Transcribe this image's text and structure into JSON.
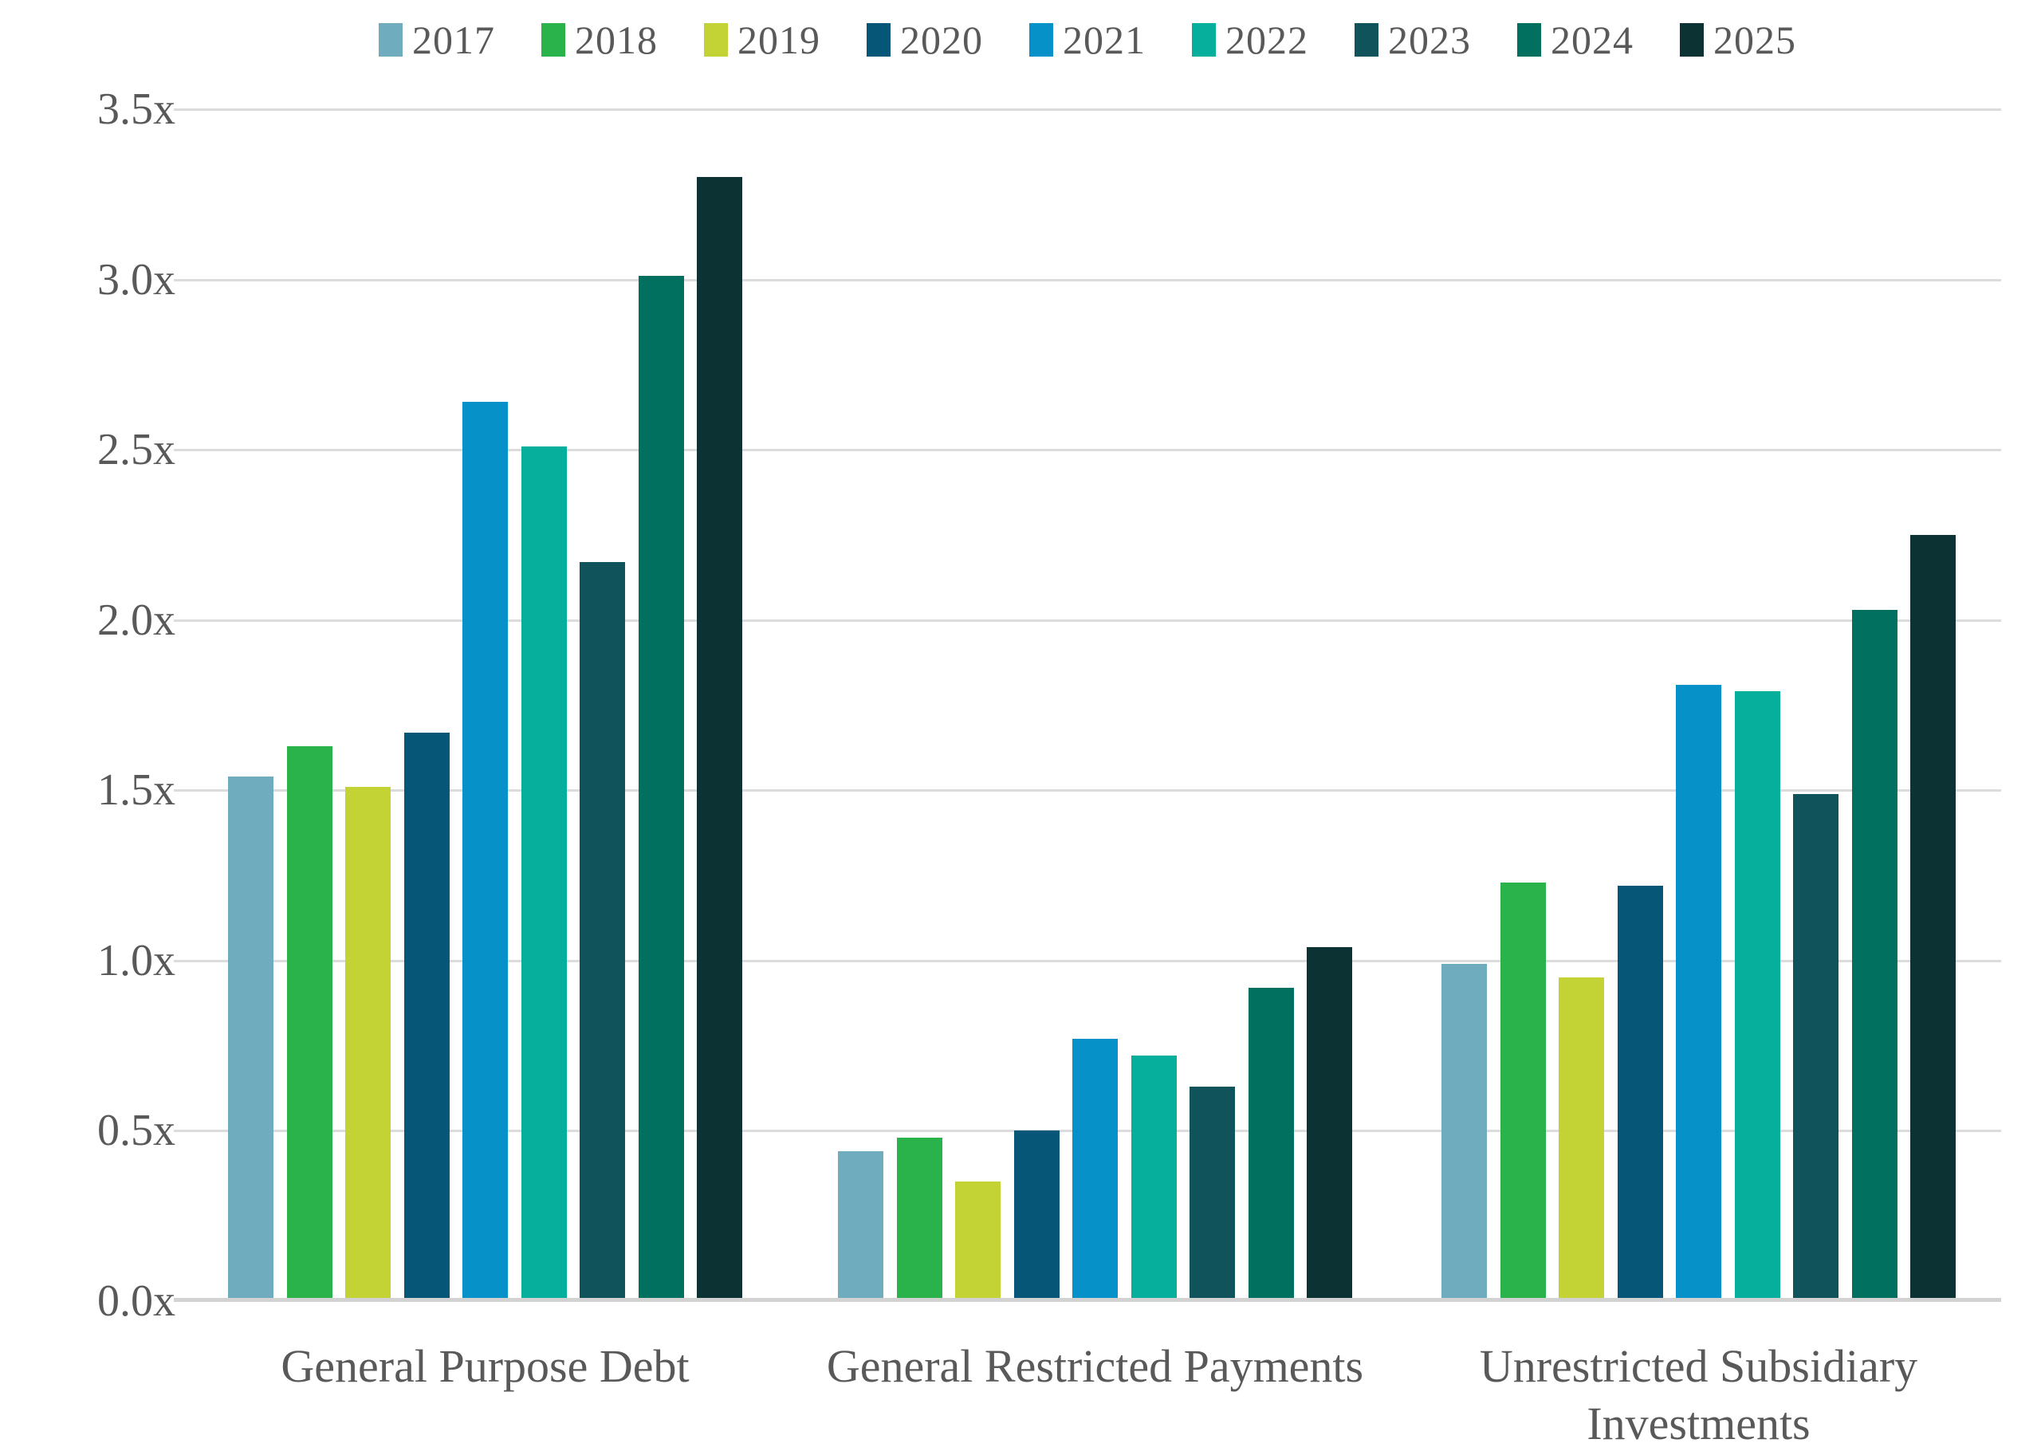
{
  "chart_data": {
    "type": "bar",
    "title": "",
    "xlabel": "",
    "ylabel": "",
    "categories": [
      "General Purpose Debt",
      "General Restricted Payments",
      "Unrestricted Subsidiary Investments"
    ],
    "series": [
      {
        "name": "2017",
        "color": "#6FACBE",
        "values": [
          1.54,
          0.44,
          0.99
        ]
      },
      {
        "name": "2018",
        "color": "#2BB34B",
        "values": [
          1.63,
          0.48,
          1.23
        ]
      },
      {
        "name": "2019",
        "color": "#C3D234",
        "values": [
          1.51,
          0.35,
          0.95
        ]
      },
      {
        "name": "2020",
        "color": "#055677",
        "values": [
          1.67,
          0.5,
          1.22
        ]
      },
      {
        "name": "2021",
        "color": "#0692C8",
        "values": [
          2.64,
          0.77,
          1.81
        ]
      },
      {
        "name": "2022",
        "color": "#05AF9C",
        "values": [
          2.51,
          0.72,
          1.79
        ]
      },
      {
        "name": "2023",
        "color": "#11535B",
        "values": [
          2.17,
          0.63,
          1.49
        ]
      },
      {
        "name": "2024",
        "color": "#02705F",
        "values": [
          3.01,
          0.92,
          2.03
        ]
      },
      {
        "name": "2025",
        "color": "#0C3234",
        "values": [
          3.3,
          1.04,
          2.25
        ]
      }
    ],
    "y_ticks": [
      "3.5x",
      "3.0x",
      "2.5x",
      "2.0x",
      "1.5x",
      "1.0x",
      "0.5x",
      "0.0x"
    ],
    "ylim": [
      0,
      3.5
    ],
    "y_step": 0.5,
    "grid": true,
    "legend_position": "top",
    "text_color": "#595959",
    "gridline_color": "#DCDCDC",
    "baseline_color": "#D2D2D2"
  }
}
